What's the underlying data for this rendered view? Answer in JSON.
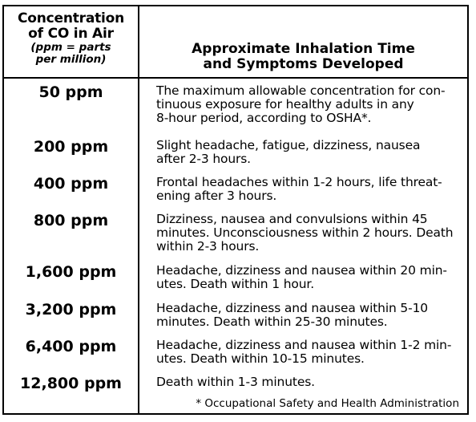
{
  "table": {
    "header": {
      "concentration_lines": [
        "Concentration",
        "of CO in Air"
      ],
      "concentration_note_lines": [
        "(ppm = parts",
        "per million)"
      ],
      "symptoms_lines": [
        "Approximate Inhalation Time",
        "and Symptoms Developed"
      ]
    },
    "rows": [
      {
        "concentration": "50 ppm",
        "lines": [
          "The maximum allowable concentration for con-",
          "tinuous exposure for healthy adults in any",
          "8-hour period, according to OSHA*."
        ]
      },
      {
        "concentration": "200 ppm",
        "lines": [
          "Slight headache, fatigue, dizziness, nausea",
          "after 2-3 hours."
        ]
      },
      {
        "concentration": "400 ppm",
        "lines": [
          "Frontal headaches within 1-2 hours, life threat-",
          "ening after 3 hours."
        ]
      },
      {
        "concentration": "800 ppm",
        "lines": [
          "Dizziness, nausea and convulsions within 45",
          "minutes. Unconsciousness within 2 hours. Death",
          "within 2-3 hours."
        ]
      },
      {
        "concentration": "1,600 ppm",
        "lines": [
          "Headache, dizziness and nausea within 20 min-",
          "utes. Death within 1 hour."
        ]
      },
      {
        "concentration": "3,200 ppm",
        "lines": [
          "Headache, dizziness and nausea within 5-10",
          "minutes. Death within 25-30 minutes."
        ]
      },
      {
        "concentration": "6,400 ppm",
        "lines": [
          "Headache, dizziness and nausea within 1-2 min-",
          "utes. Death within 10-15 minutes."
        ]
      },
      {
        "concentration": "12,800 ppm",
        "lines": [
          "Death within 1-3 minutes."
        ]
      }
    ],
    "footnote": "* Occupational Safety and Health Administration"
  }
}
